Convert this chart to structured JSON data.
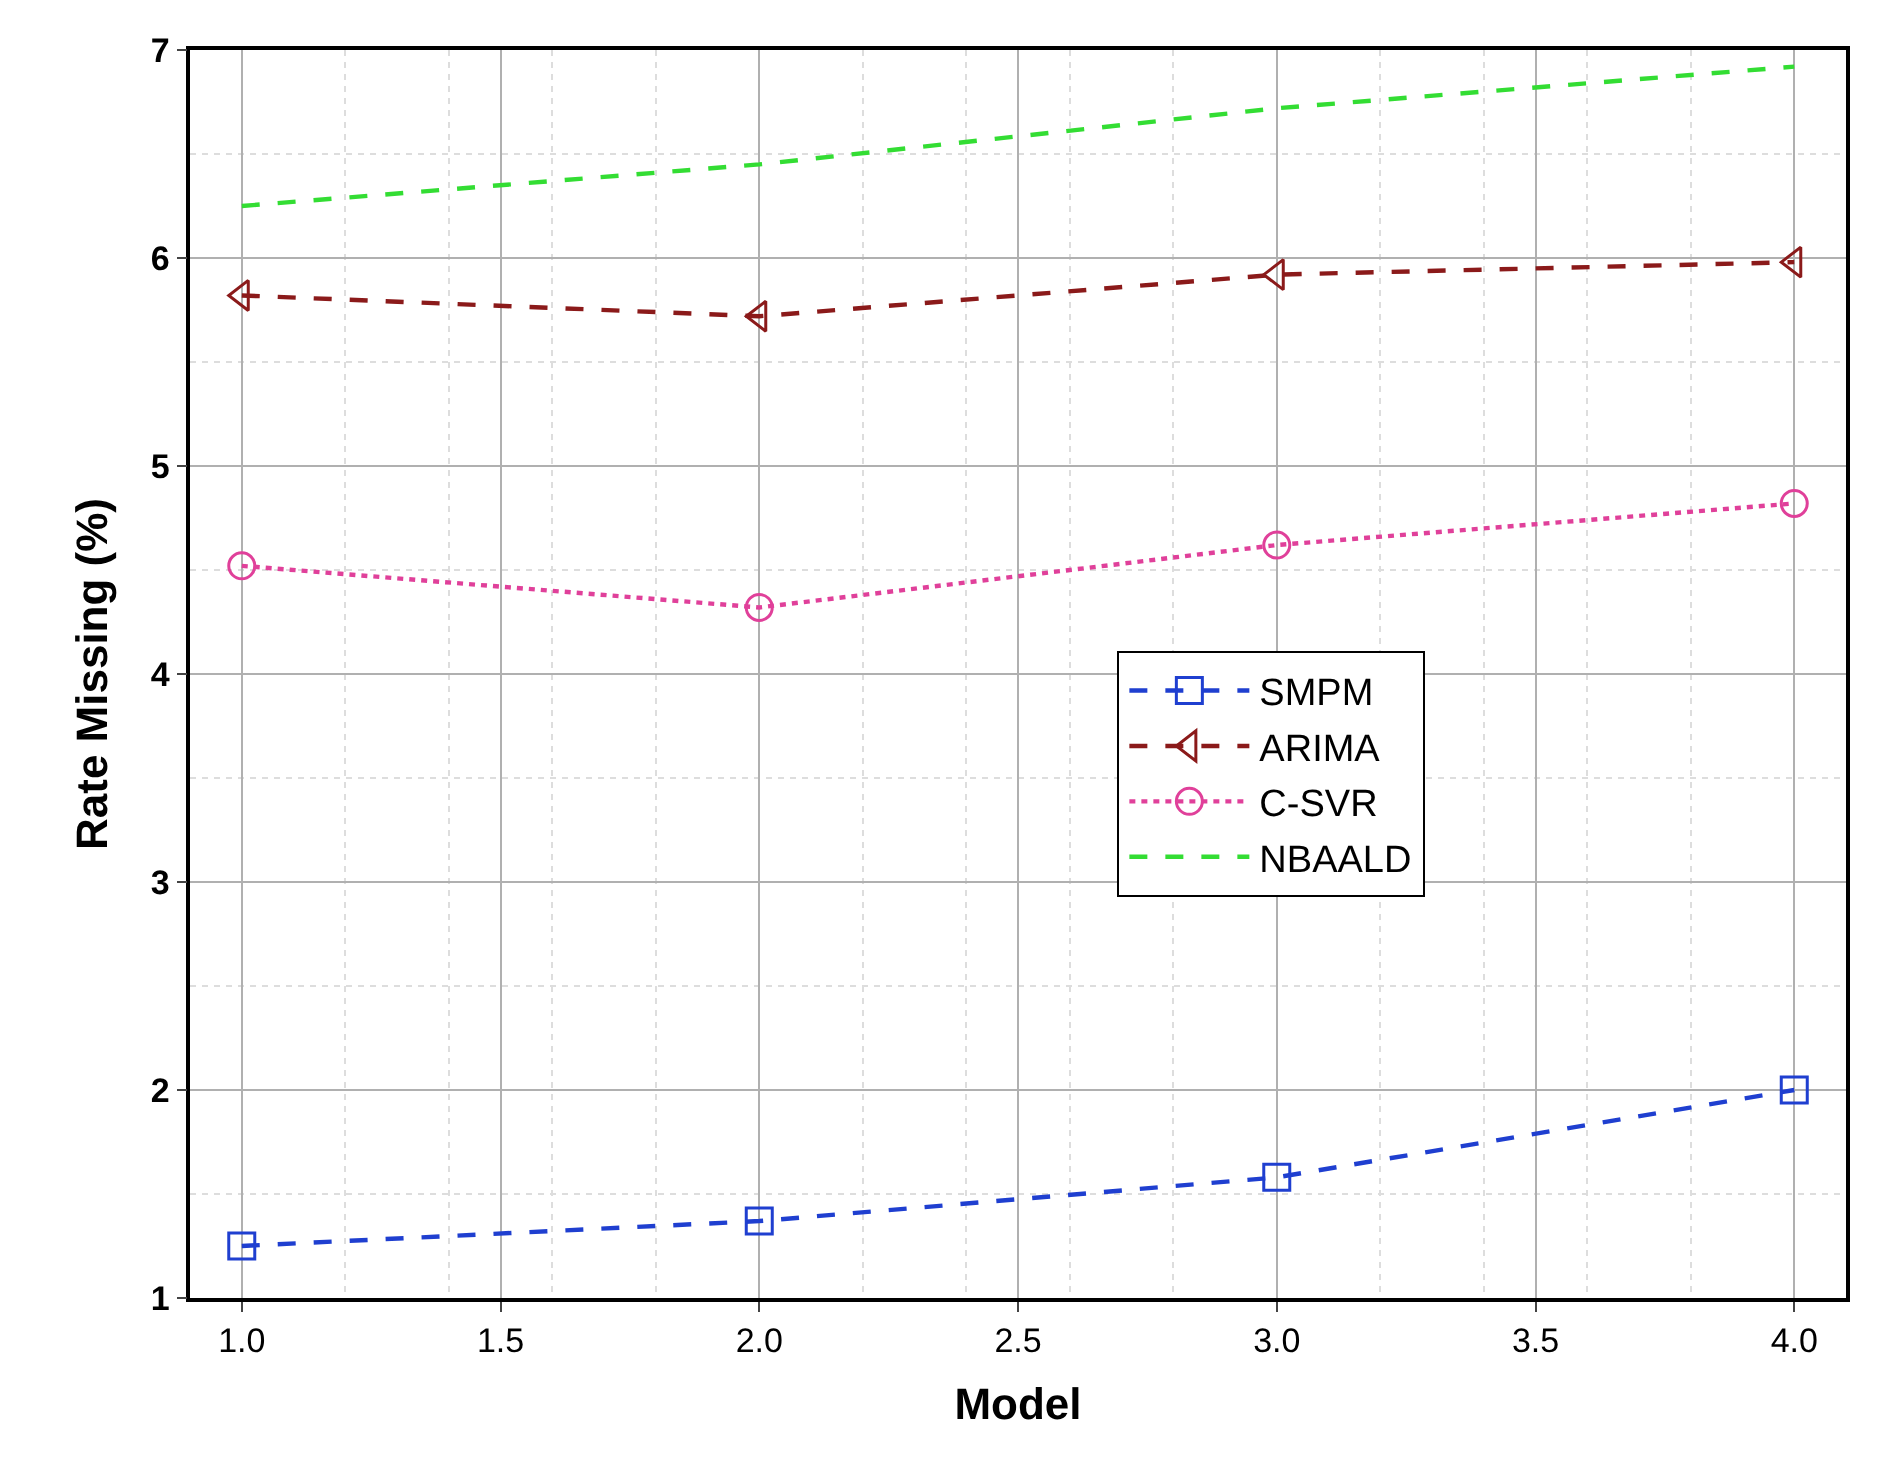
{
  "chart_data": {
    "type": "line",
    "xlabel": "Model",
    "ylabel": "Rate Missing (%)",
    "x": [
      1.0,
      2.0,
      3.0,
      4.0
    ],
    "series": [
      {
        "name": "SMPM",
        "color": "#1f3fd0",
        "values": [
          1.25,
          1.37,
          1.58,
          2.0
        ],
        "marker": "square",
        "line_style": "dashed"
      },
      {
        "name": "ARIMA",
        "color": "#8b1a1a",
        "values": [
          5.82,
          5.72,
          5.92,
          5.98
        ],
        "marker": "triangle",
        "line_style": "dashed"
      },
      {
        "name": "C-SVR",
        "color": "#e0409a",
        "values": [
          4.52,
          4.32,
          4.62,
          4.82
        ],
        "marker": "circle",
        "line_style": "dotted"
      },
      {
        "name": "NBAALD",
        "color": "#33dd33",
        "values": [
          6.25,
          6.45,
          6.72,
          6.92
        ],
        "marker": "none",
        "line_style": "dashed"
      }
    ],
    "xlim": [
      0.9,
      4.1
    ],
    "xticks": [
      {
        "value": 1.0,
        "label": "1.0"
      },
      1.5,
      {
        "value": 2.0,
        "label": "2.0"
      },
      2.5,
      {
        "value": 3.0,
        "label": "3.0"
      },
      3.5,
      {
        "value": 4.0,
        "label": "4.0"
      }
    ],
    "ylim": [
      1,
      7
    ],
    "yticks": [
      1,
      2,
      3,
      4,
      5,
      6,
      7
    ],
    "grid": true,
    "legend": "center right"
  }
}
